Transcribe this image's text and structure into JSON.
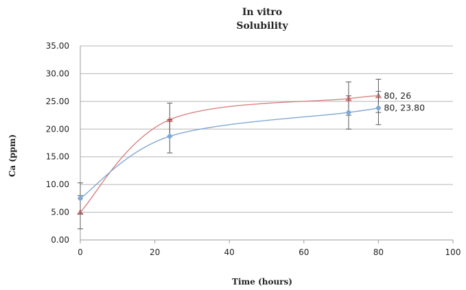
{
  "chart_data": {
    "type": "scatter",
    "title": [
      "In vitro",
      "Solubility"
    ],
    "xlabel": "Time (hours)",
    "ylabel": "Ca (ppm)",
    "xlim": [
      0,
      100
    ],
    "ylim": [
      0,
      35
    ],
    "xticks": [
      "0",
      "20",
      "40",
      "60",
      "80",
      "100"
    ],
    "yticks": [
      "0.00",
      "5.00",
      "10.00",
      "15.00",
      "20.00",
      "25.00",
      "30.00",
      "35.00"
    ],
    "grid": "horizontal",
    "smooth_lines": true,
    "series": [
      {
        "color": "#d9817f",
        "marker": "triangle",
        "x": [
          0,
          24,
          72,
          80
        ],
        "y": [
          5.0,
          21.7,
          25.5,
          26.0
        ],
        "error": [
          3.0,
          3.0,
          3.0,
          3.0
        ]
      },
      {
        "color": "#7fa7d6",
        "marker": "diamond",
        "x": [
          0,
          24,
          72,
          80
        ],
        "y": [
          7.5,
          18.7,
          23.0,
          23.8
        ],
        "error": [
          2.8,
          3.0,
          3.0,
          3.0
        ]
      }
    ],
    "data_labels": [
      {
        "text": "80, 26",
        "series": 0,
        "point": 3
      },
      {
        "text": "80, 23.80",
        "series": 1,
        "point": 3
      }
    ]
  }
}
